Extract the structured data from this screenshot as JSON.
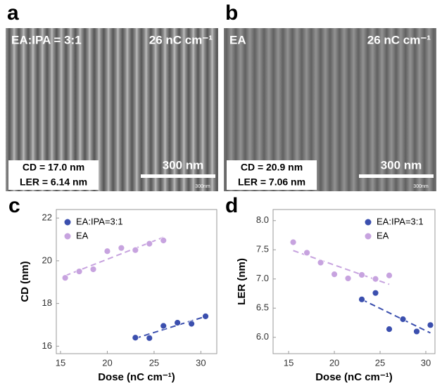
{
  "panels": [
    {
      "letter": "a",
      "condition": "EA:IPA = 3:1",
      "dose": "26 nC cm⁻¹",
      "cd": "CD = 17.0 nm",
      "ler": "LER = 6.14 nm",
      "scale_bar": "300 nm",
      "scale_bar_small": "300nm"
    },
    {
      "letter": "b",
      "condition": "EA",
      "dose": "26 nC cm⁻¹",
      "cd": "CD = 20.9 nm",
      "ler": "LER = 7.06 nm",
      "scale_bar": "300 nm",
      "scale_bar_small": "300nm"
    }
  ],
  "chart_data": [
    {
      "type": "scatter",
      "panel_label": "c",
      "x_label": "Dose (nC cm⁻¹)",
      "y_label": "CD (nm)",
      "xlim": [
        14.55,
        31.7
      ],
      "xticks": [
        15,
        20,
        25,
        30
      ],
      "ylim": [
        15.65,
        22.4
      ],
      "yticks": [
        16,
        18,
        20,
        22
      ],
      "legend": "upper left",
      "trendline": "dashed",
      "series": [
        {
          "name": "EA:IPA=3:1",
          "color": "#3b4fae",
          "x": [
            23,
            24.5,
            26,
            27.5,
            29,
            30.5
          ],
          "values": [
            16.4,
            16.38,
            16.95,
            17.1,
            17.05,
            17.4
          ]
        },
        {
          "name": "EA",
          "color": "#c7a3df",
          "x": [
            15.5,
            17,
            18.5,
            20,
            21.5,
            23,
            24.5,
            26
          ],
          "values": [
            19.2,
            19.5,
            19.6,
            20.45,
            20.6,
            20.5,
            20.8,
            20.95
          ]
        }
      ]
    },
    {
      "type": "scatter",
      "panel_label": "d",
      "x_label": "Dose (nC cm⁻¹)",
      "y_label": "LER (nm)",
      "xlim": [
        13.3,
        31.0
      ],
      "xticks": [
        15,
        20,
        25,
        30
      ],
      "ylim": [
        5.72,
        8.19
      ],
      "yticks": [
        {
          "value": 6,
          "label": "6.0"
        },
        6.5,
        {
          "value": 7,
          "label": "7.0"
        },
        7.5,
        {
          "value": 8,
          "label": "8.0"
        }
      ],
      "legend": "upper right",
      "trendline": "dashed",
      "series": [
        {
          "name": "EA:IPA=3:1",
          "color": "#3b4fae",
          "x": [
            23,
            24.5,
            26,
            27.5,
            29,
            30.5
          ],
          "values": [
            6.65,
            6.76,
            6.14,
            6.31,
            6.1,
            6.21
          ]
        },
        {
          "name": "EA",
          "color": "#c7a3df",
          "x": [
            15.5,
            17,
            18.5,
            20,
            21.5,
            23,
            24.5,
            26
          ],
          "values": [
            7.63,
            7.45,
            7.28,
            7.08,
            7.01,
            7.07,
            7.0,
            7.06
          ]
        }
      ]
    }
  ]
}
